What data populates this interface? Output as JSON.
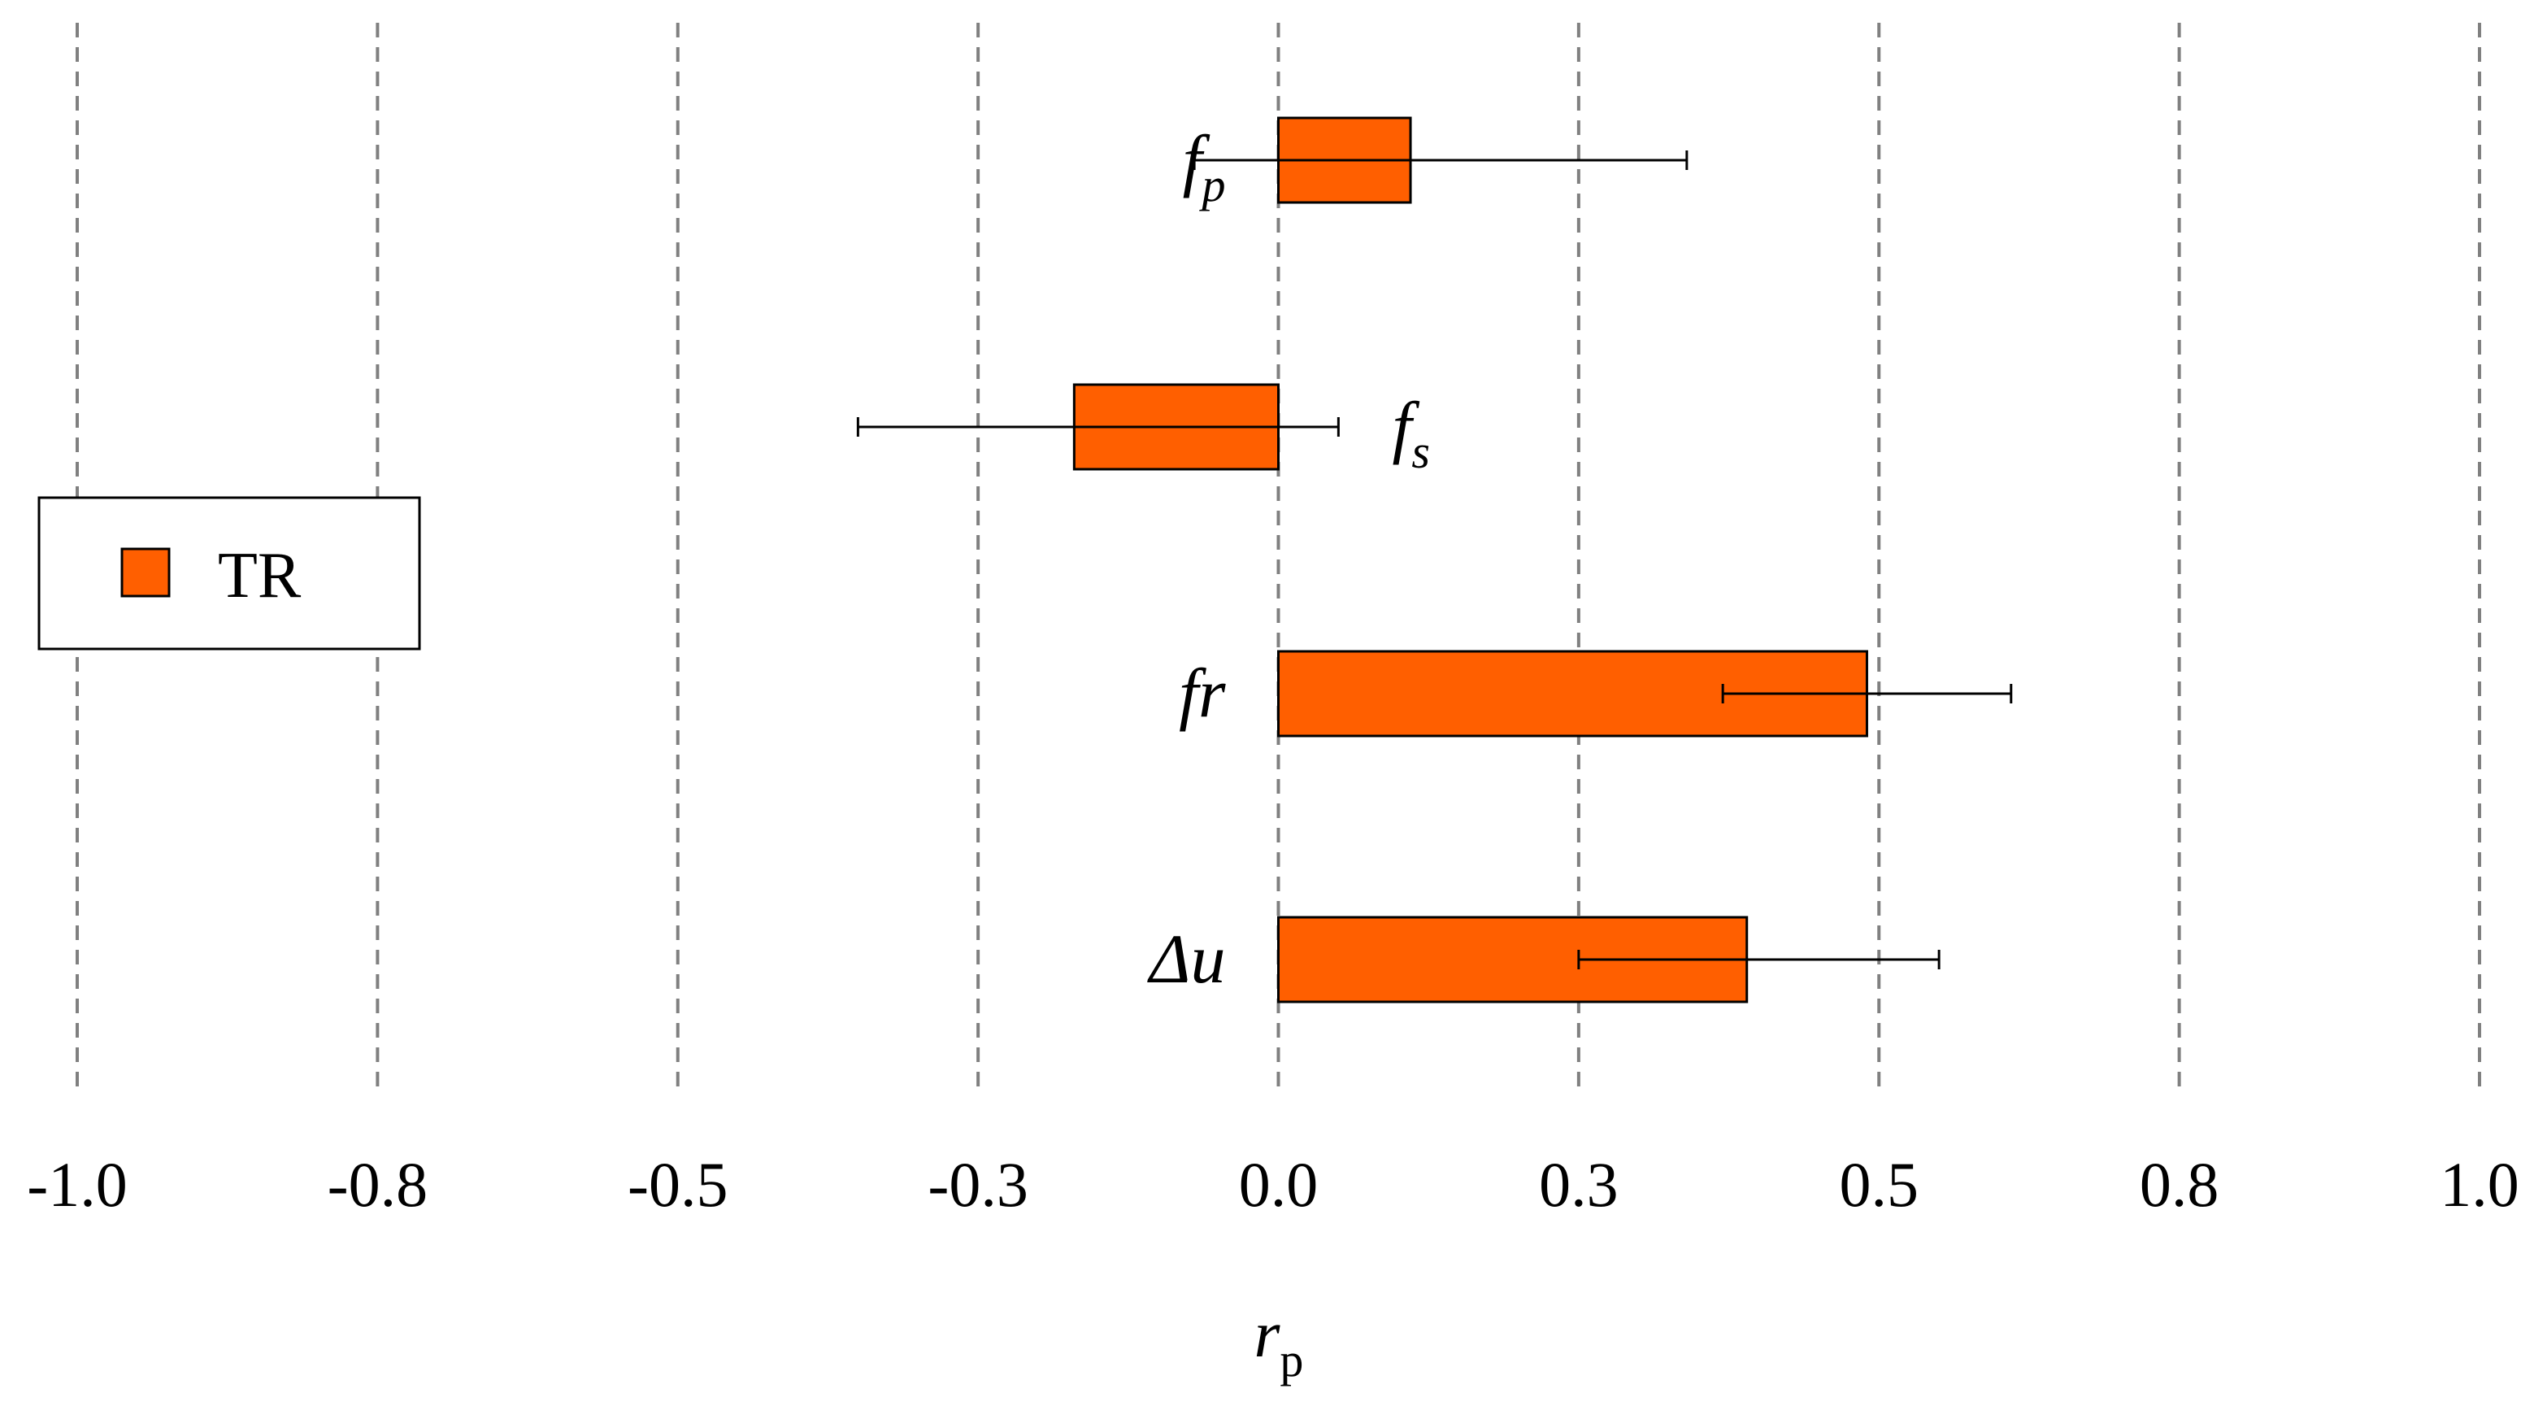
{
  "chart_data": {
    "type": "bar",
    "orientation": "horizontal",
    "categories": [
      {
        "base": "f",
        "sub": "p"
      },
      {
        "base": "f",
        "sub": "s"
      },
      {
        "base": "fr",
        "sub": ""
      },
      {
        "base": "Δu",
        "sub": ""
      }
    ],
    "series": [
      {
        "name": "TR",
        "color": "#FF5F00",
        "values": [
          0.11,
          -0.17,
          0.49,
          0.39
        ],
        "error_low": [
          -0.07,
          -0.35,
          0.37,
          0.25
        ],
        "error_high": [
          0.34,
          0.05,
          0.61,
          0.55
        ]
      }
    ],
    "xlabel": {
      "base": "r",
      "sub": "p"
    },
    "xlim": [
      -1.0,
      1.0
    ],
    "xticks": [
      -1.0,
      -0.75,
      -0.5,
      -0.25,
      0.0,
      0.25,
      0.5,
      0.75,
      1.0
    ],
    "xtick_labels": [
      "-1.0",
      "-0.8",
      "-0.5",
      "-0.3",
      "0.0",
      "0.3",
      "0.5",
      "0.8",
      "1.0"
    ],
    "grid": "vertical-dashed",
    "legend_position": "middle-left",
    "legend_entries": [
      "TR"
    ],
    "bar_color": "#FF5F00",
    "grid_color": "#808080"
  }
}
